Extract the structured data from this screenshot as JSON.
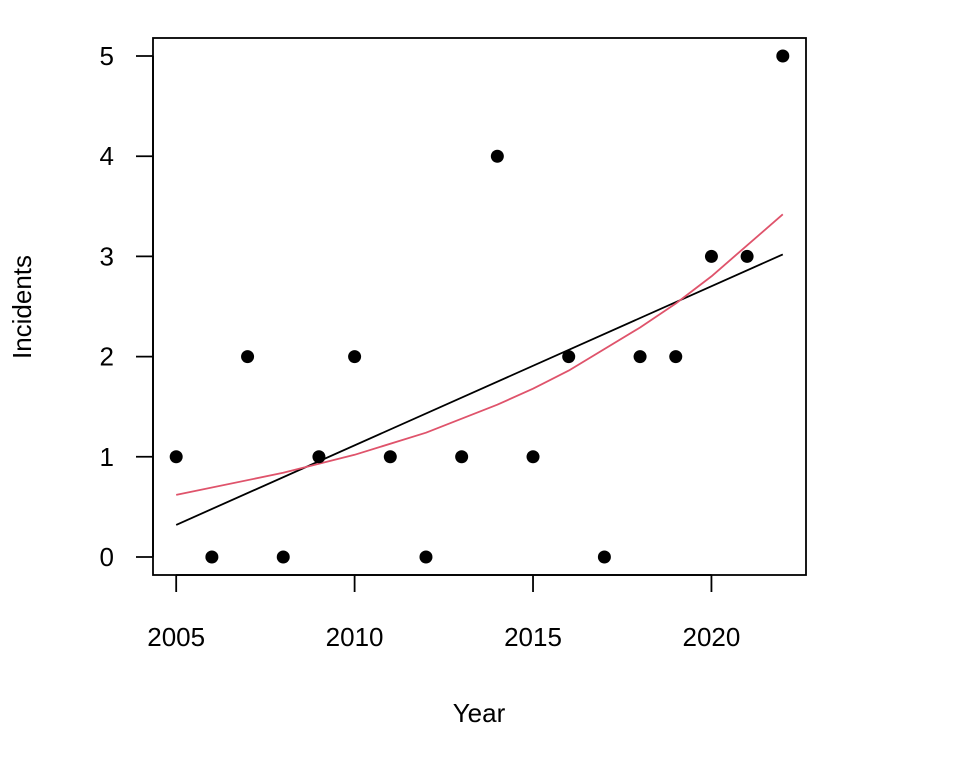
{
  "chart_data": {
    "type": "scatter",
    "xlabel": "Year",
    "ylabel": "Incidents",
    "xlim": [
      2004.35,
      2022.65
    ],
    "ylim": [
      -0.18,
      5.18
    ],
    "x_ticks": [
      2005,
      2010,
      2015,
      2020
    ],
    "y_ticks": [
      0,
      1,
      2,
      3,
      4,
      5
    ],
    "grid": false,
    "points": {
      "x": [
        2005,
        2006,
        2007,
        2008,
        2009,
        2010,
        2011,
        2012,
        2013,
        2014,
        2015,
        2016,
        2017,
        2018,
        2019,
        2020,
        2021,
        2022
      ],
      "y": [
        1,
        0,
        2,
        0,
        1,
        2,
        1,
        0,
        1,
        4,
        1,
        2,
        0,
        2,
        2,
        3,
        3,
        5
      ],
      "color": "#000000"
    },
    "fits": [
      {
        "kind": "linear",
        "color": "#000000",
        "x": [
          2005,
          2022
        ],
        "y": [
          0.32,
          3.02
        ]
      },
      {
        "kind": "curve",
        "color": "#DF536B",
        "x": [
          2005,
          2008,
          2009,
          2010,
          2012,
          2014,
          2015,
          2016,
          2018,
          2019,
          2020,
          2022
        ],
        "y": [
          0.62,
          0.84,
          0.93,
          1.02,
          1.24,
          1.52,
          1.68,
          1.86,
          2.29,
          2.53,
          2.8,
          3.42
        ]
      }
    ]
  }
}
